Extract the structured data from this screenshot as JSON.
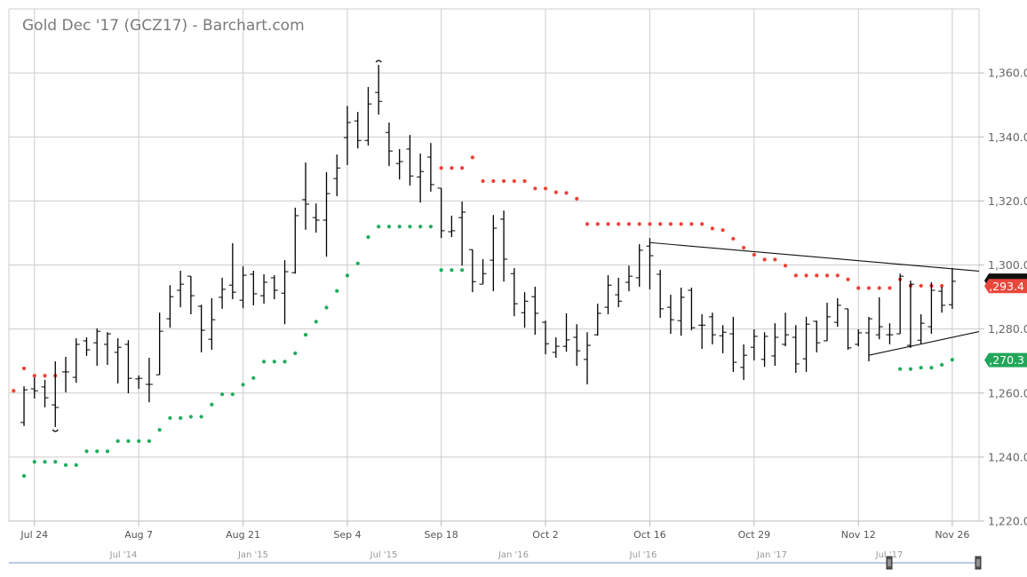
{
  "title": "Gold Dec '17 (GCZ17) - Barchart.com",
  "chart_data": {
    "type": "ohlc",
    "ylim": [
      1220,
      1380
    ],
    "grid": true,
    "y_ticks": [
      "1,220.0",
      "1,240.0",
      "1,260.0",
      "1,280.0",
      "1,300.0",
      "1,320.0",
      "1,340.0",
      "1,360.0"
    ],
    "y_tick_values": [
      1220,
      1240,
      1260,
      1280,
      1300,
      1320,
      1340,
      1360
    ],
    "x_ticks": [
      "Jul 24",
      "Aug 7",
      "Aug 21",
      "Sep 4",
      "Sep 18",
      "Oct 2",
      "Oct 16",
      "Oct 29",
      "Nov 12",
      "Nov 26"
    ],
    "dates": [
      "Jul 20",
      "Jul 21",
      "Jul 24",
      "Jul 25",
      "Jul 26",
      "Jul 27",
      "Jul 28",
      "Jul 31",
      "Aug 1",
      "Aug 2",
      "Aug 3",
      "Aug 4",
      "Aug 7",
      "Aug 8",
      "Aug 9",
      "Aug 10",
      "Aug 11",
      "Aug 14",
      "Aug 15",
      "Aug 16",
      "Aug 17",
      "Aug 18",
      "Aug 21",
      "Aug 22",
      "Aug 23",
      "Aug 24",
      "Aug 25",
      "Aug 28",
      "Aug 29",
      "Aug 30",
      "Aug 31",
      "Sep 1",
      "Sep 5",
      "Sep 6",
      "Sep 7",
      "Sep 8",
      "Sep 11",
      "Sep 12",
      "Sep 13",
      "Sep 14",
      "Sep 15",
      "Sep 18",
      "Sep 19",
      "Sep 20",
      "Sep 21",
      "Sep 22",
      "Sep 25",
      "Sep 26",
      "Sep 27",
      "Sep 28",
      "Sep 29",
      "Oct 2",
      "Oct 3",
      "Oct 4",
      "Oct 5",
      "Oct 6",
      "Oct 9",
      "Oct 10",
      "Oct 11",
      "Oct 12",
      "Oct 13",
      "Oct 16",
      "Oct 17",
      "Oct 18",
      "Oct 19",
      "Oct 20",
      "Oct 23",
      "Oct 24",
      "Oct 25",
      "Oct 26",
      "Oct 27",
      "Oct 30",
      "Oct 31",
      "Nov 1",
      "Nov 2",
      "Nov 3",
      "Nov 6",
      "Nov 7",
      "Nov 8",
      "Nov 9",
      "Nov 10",
      "Nov 13",
      "Nov 14",
      "Nov 15",
      "Nov 16",
      "Nov 17",
      "Nov 20",
      "Nov 21",
      "Nov 22",
      "Nov 24",
      "Nov 27"
    ],
    "ohlc": [
      null,
      [
        1250.8,
        1262.1,
        1249.7,
        1261.0
      ],
      [
        1261.3,
        1264.9,
        1258.3,
        1260.7
      ],
      [
        1261.9,
        1264.1,
        1255.5,
        1258.5
      ],
      [
        1256.3,
        1269.9,
        1249.4,
        1255.5
      ],
      [
        1266.6,
        1271.3,
        1260.2,
        1266.6
      ],
      [
        1264.9,
        1277.1,
        1263.2,
        1275.2
      ],
      [
        1276.3,
        1277.4,
        1271.6,
        1273.5
      ],
      [
        1275.7,
        1280.2,
        1268.5,
        1279.3
      ],
      [
        1275.2,
        1279.0,
        1268.8,
        1278.5
      ],
      [
        1272.7,
        1277.1,
        1263.0,
        1274.3
      ],
      [
        1275.2,
        1276.5,
        1259.9,
        1264.6
      ],
      [
        1264.4,
        1265.5,
        1261.3,
        1264.6
      ],
      [
        1262.7,
        1271.0,
        1257.1,
        1262.7
      ],
      [
        1265.7,
        1285.1,
        1265.7,
        1279.3
      ],
      [
        1283.2,
        1293.7,
        1280.4,
        1290.1
      ],
      [
        1292.1,
        1298.2,
        1286.8,
        1294.0
      ],
      [
        1296.5,
        1296.5,
        1284.6,
        1290.4
      ],
      [
        1287.1,
        1287.6,
        1272.7,
        1279.6
      ],
      [
        1276.8,
        1289.6,
        1273.5,
        1282.9
      ],
      [
        1289.9,
        1296.0,
        1286.3,
        1292.4
      ],
      [
        1293.7,
        1306.8,
        1289.3,
        1291.5
      ],
      [
        1289.0,
        1299.6,
        1286.5,
        1296.8
      ],
      [
        1297.1,
        1298.2,
        1287.4,
        1291.0
      ],
      [
        1290.4,
        1297.1,
        1287.9,
        1294.6
      ],
      [
        1296.0,
        1296.8,
        1289.3,
        1292.1
      ],
      [
        1291.2,
        1301.5,
        1281.5,
        1297.9
      ],
      [
        1297.6,
        1317.9,
        1297.3,
        1315.4
      ],
      [
        1320.4,
        1332.0,
        1311.0,
        1319.0
      ],
      [
        1314.8,
        1319.2,
        1310.1,
        1314.0
      ],
      [
        1314.0,
        1329.0,
        1302.6,
        1322.3
      ],
      [
        1327.0,
        1334.5,
        1321.5,
        1330.3
      ],
      [
        1339.8,
        1349.7,
        1331.2,
        1344.5
      ],
      [
        1345.0,
        1347.8,
        1336.4,
        1338.9
      ],
      [
        1338.9,
        1355.6,
        1337.3,
        1350.3
      ],
      [
        1353.9,
        1362.5,
        1347.0,
        1351.1
      ],
      [
        1341.4,
        1344.5,
        1330.9,
        1335.6
      ],
      [
        1331.7,
        1336.2,
        1326.7,
        1332.3
      ],
      [
        1336.2,
        1340.6,
        1324.8,
        1327.8
      ],
      [
        1327.5,
        1334.8,
        1319.5,
        1329.2
      ],
      [
        1333.7,
        1338.1,
        1322.9,
        1325.1
      ],
      [
        1324.0,
        1324.0,
        1308.4,
        1310.7
      ],
      [
        1310.4,
        1315.4,
        1308.7,
        1310.7
      ],
      [
        1314.8,
        1319.8,
        1299.8,
        1316.5
      ],
      [
        1304.8,
        1304.8,
        1291.5,
        1294.8
      ],
      [
        1294.0,
        1301.8,
        1294.0,
        1297.3
      ],
      [
        1301.5,
        1315.6,
        1291.8,
        1311.5
      ],
      [
        1314.3,
        1317.0,
        1294.8,
        1301.8
      ],
      [
        1297.3,
        1299.0,
        1284.0,
        1287.9
      ],
      [
        1285.1,
        1291.5,
        1280.4,
        1288.7
      ],
      [
        1290.1,
        1293.2,
        1278.2,
        1284.9
      ],
      [
        1282.1,
        1282.6,
        1272.1,
        1275.4
      ],
      [
        1272.7,
        1277.4,
        1271.0,
        1274.6
      ],
      [
        1274.6,
        1284.9,
        1272.9,
        1276.6
      ],
      [
        1277.4,
        1281.5,
        1268.5,
        1273.2
      ],
      [
        1270.5,
        1279.0,
        1262.7,
        1274.9
      ],
      [
        1278.2,
        1287.9,
        1277.9,
        1284.9
      ],
      [
        1286.8,
        1296.8,
        1284.6,
        1293.7
      ],
      [
        1290.7,
        1296.0,
        1286.8,
        1288.7
      ],
      [
        1294.6,
        1299.8,
        1291.8,
        1296.5
      ],
      [
        1296.0,
        1306.5,
        1293.2,
        1304.6
      ],
      [
        1305.9,
        1308.4,
        1292.4,
        1302.9
      ],
      [
        1297.1,
        1298.5,
        1283.5,
        1286.3
      ],
      [
        1286.8,
        1290.7,
        1278.5,
        1282.9
      ],
      [
        1282.6,
        1292.9,
        1277.9,
        1289.9
      ],
      [
        1292.1,
        1292.9,
        1279.6,
        1280.4
      ],
      [
        1281.2,
        1284.6,
        1273.8,
        1281.2
      ],
      [
        1283.8,
        1285.1,
        1275.2,
        1278.2
      ],
      [
        1277.9,
        1281.2,
        1272.4,
        1279.0
      ],
      [
        1278.5,
        1283.8,
        1266.6,
        1269.6
      ],
      [
        1268.0,
        1275.2,
        1264.1,
        1271.8
      ],
      [
        1274.3,
        1279.9,
        1270.2,
        1277.7
      ],
      [
        1270.5,
        1279.0,
        1268.2,
        1277.7
      ],
      [
        1271.6,
        1281.8,
        1268.5,
        1277.4
      ],
      [
        1275.2,
        1285.1,
        1274.6,
        1278.2
      ],
      [
        1277.4,
        1281.2,
        1266.3,
        1269.1
      ],
      [
        1270.7,
        1283.8,
        1266.6,
        1281.5
      ],
      [
        1282.4,
        1282.6,
        1272.7,
        1275.7
      ],
      [
        1276.3,
        1288.2,
        1276.3,
        1283.8
      ],
      [
        1282.1,
        1289.6,
        1280.7,
        1287.4
      ],
      [
        1286.3,
        1286.3,
        1273.5,
        1274.1
      ],
      [
        1275.2,
        1279.9,
        1274.6,
        1278.8
      ],
      [
        1278.8,
        1283.8,
        1269.9,
        1283.2
      ],
      [
        1278.2,
        1289.9,
        1276.8,
        1280.7
      ],
      [
        1278.2,
        1281.8,
        1275.2,
        1278.2
      ],
      [
        1278.5,
        1297.3,
        1278.5,
        1296.5
      ],
      [
        1274.9,
        1295.1,
        1274.1,
        1294.0
      ],
      [
        1276.5,
        1284.6,
        1275.4,
        1281.8
      ],
      [
        1280.7,
        1294.6,
        1278.5,
        1292.1
      ],
      [
        1291.8,
        1293.2,
        1285.1,
        1287.4
      ],
      [
        1287.6,
        1299.0,
        1286.3,
        1294.9
      ]
    ],
    "upper_dots": [
      1260.7,
      1267.7,
      1265.4,
      1265.4,
      1265.4,
      null,
      null,
      null,
      null,
      null,
      null,
      null,
      null,
      null,
      null,
      null,
      null,
      null,
      null,
      null,
      null,
      null,
      null,
      null,
      null,
      null,
      null,
      null,
      null,
      null,
      null,
      null,
      null,
      null,
      null,
      null,
      null,
      null,
      null,
      null,
      null,
      1330.3,
      1330.3,
      1330.3,
      1333.6,
      1326.2,
      1326.2,
      1326.2,
      1326.2,
      1326.2,
      1323.9,
      1323.9,
      1322.7,
      1322.5,
      1320.7,
      1312.8,
      1312.8,
      1312.8,
      1312.8,
      1312.8,
      1312.8,
      1312.8,
      1312.8,
      1312.8,
      1312.8,
      1312.8,
      1312.8,
      1311.4,
      1310.9,
      1308.2,
      1305.4,
      1303.2,
      1301.7,
      1301.7,
      1299.8,
      1296.7,
      1296.7,
      1296.7,
      1296.7,
      1296.7,
      1295.5,
      1292.8,
      1292.8,
      1292.8,
      1292.8,
      1295.5,
      1293.5,
      1293.5,
      1293.5,
      1293.5,
      null
    ],
    "lower_dots": [
      null,
      1234.1,
      1238.5,
      1238.5,
      1238.5,
      1237.5,
      1237.5,
      1241.8,
      1241.8,
      1241.8,
      1245.0,
      1245.0,
      1245.0,
      1245.0,
      1248.5,
      1252.2,
      1252.2,
      1252.6,
      1252.6,
      1256.4,
      1259.6,
      1259.6,
      1262.6,
      1264.7,
      1269.8,
      1269.8,
      1269.8,
      1272.4,
      1278.2,
      1282.3,
      1286.7,
      1291.9,
      1296.7,
      1300.5,
      1308.7,
      1312.0,
      1312.0,
      1312.0,
      1312.0,
      1312.0,
      1312.0,
      1298.4,
      1298.4,
      1298.4,
      null,
      null,
      null,
      null,
      null,
      null,
      null,
      null,
      null,
      null,
      null,
      null,
      null,
      null,
      null,
      null,
      null,
      null,
      null,
      null,
      null,
      null,
      null,
      null,
      null,
      null,
      null,
      null,
      null,
      null,
      null,
      null,
      null,
      null,
      null,
      null,
      null,
      null,
      null,
      null,
      null,
      1267.5,
      1267.5,
      1267.9,
      1267.9,
      1268.8,
      1270.4
    ],
    "trendlines": [
      {
        "from": {
          "date": "Oct 16",
          "value": 1307.0
        },
        "to": {
          "date": "Nov 27",
          "value": 1298.8
        },
        "extend": "right"
      },
      {
        "from": {
          "date": "Nov 14",
          "value": 1271.8
        },
        "to": {
          "date": "Nov 27",
          "value": 1277.4
        },
        "extend": "right"
      }
    ],
    "price_labels": [
      {
        "text": "",
        "value": 1295.1,
        "color": "#111111"
      },
      {
        "text": "1,293.4",
        "value": 1293.4,
        "color": "#e8483b"
      },
      {
        "text": "1,270.3",
        "value": 1270.3,
        "color": "#22a65a"
      }
    ],
    "colors": {
      "bars": "#000000",
      "upper_dots": "#ee4136",
      "lower_dots": "#1fad5c",
      "grid": "#cccccc",
      "navigator": "#a7b9dc"
    }
  },
  "navigator": {
    "labels": [
      "Jul '14",
      "Jan '15",
      "Jul '15",
      "Jan '16",
      "Jul '16",
      "Jan '17",
      "Jul '17"
    ]
  }
}
